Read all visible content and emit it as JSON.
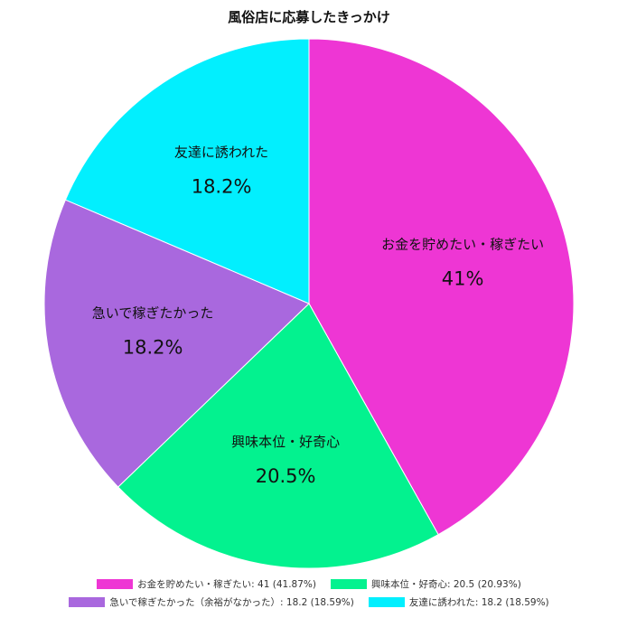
{
  "chart_data": {
    "type": "pie",
    "title": "風俗店に応募したきっかけ",
    "slices": [
      {
        "label": "お金を貯めたい・稼ぎたい",
        "value": 41,
        "percent_label": "41%",
        "legend": "お金を貯めたい・稼ぎたい: 41 (41.87%)",
        "color": "#ee36d4"
      },
      {
        "label": "興味本位・好奇心",
        "value": 20.5,
        "percent_label": "20.5%",
        "legend": "興味本位・好奇心: 20.5 (20.93%)",
        "color": "#03f28f"
      },
      {
        "label": "急いで稼ぎたかった",
        "value": 18.2,
        "percent_label": "18.2%",
        "legend": "急いで稼ぎたかった（余裕がなかった）: 18.2 (18.59%)",
        "color": "#a968de"
      },
      {
        "label": "友達に誘われた",
        "value": 18.2,
        "percent_label": "18.2%",
        "legend": "友達に誘われた: 18.2 (18.59%)",
        "color": "#02effe"
      }
    ],
    "legend_position": "bottom"
  }
}
